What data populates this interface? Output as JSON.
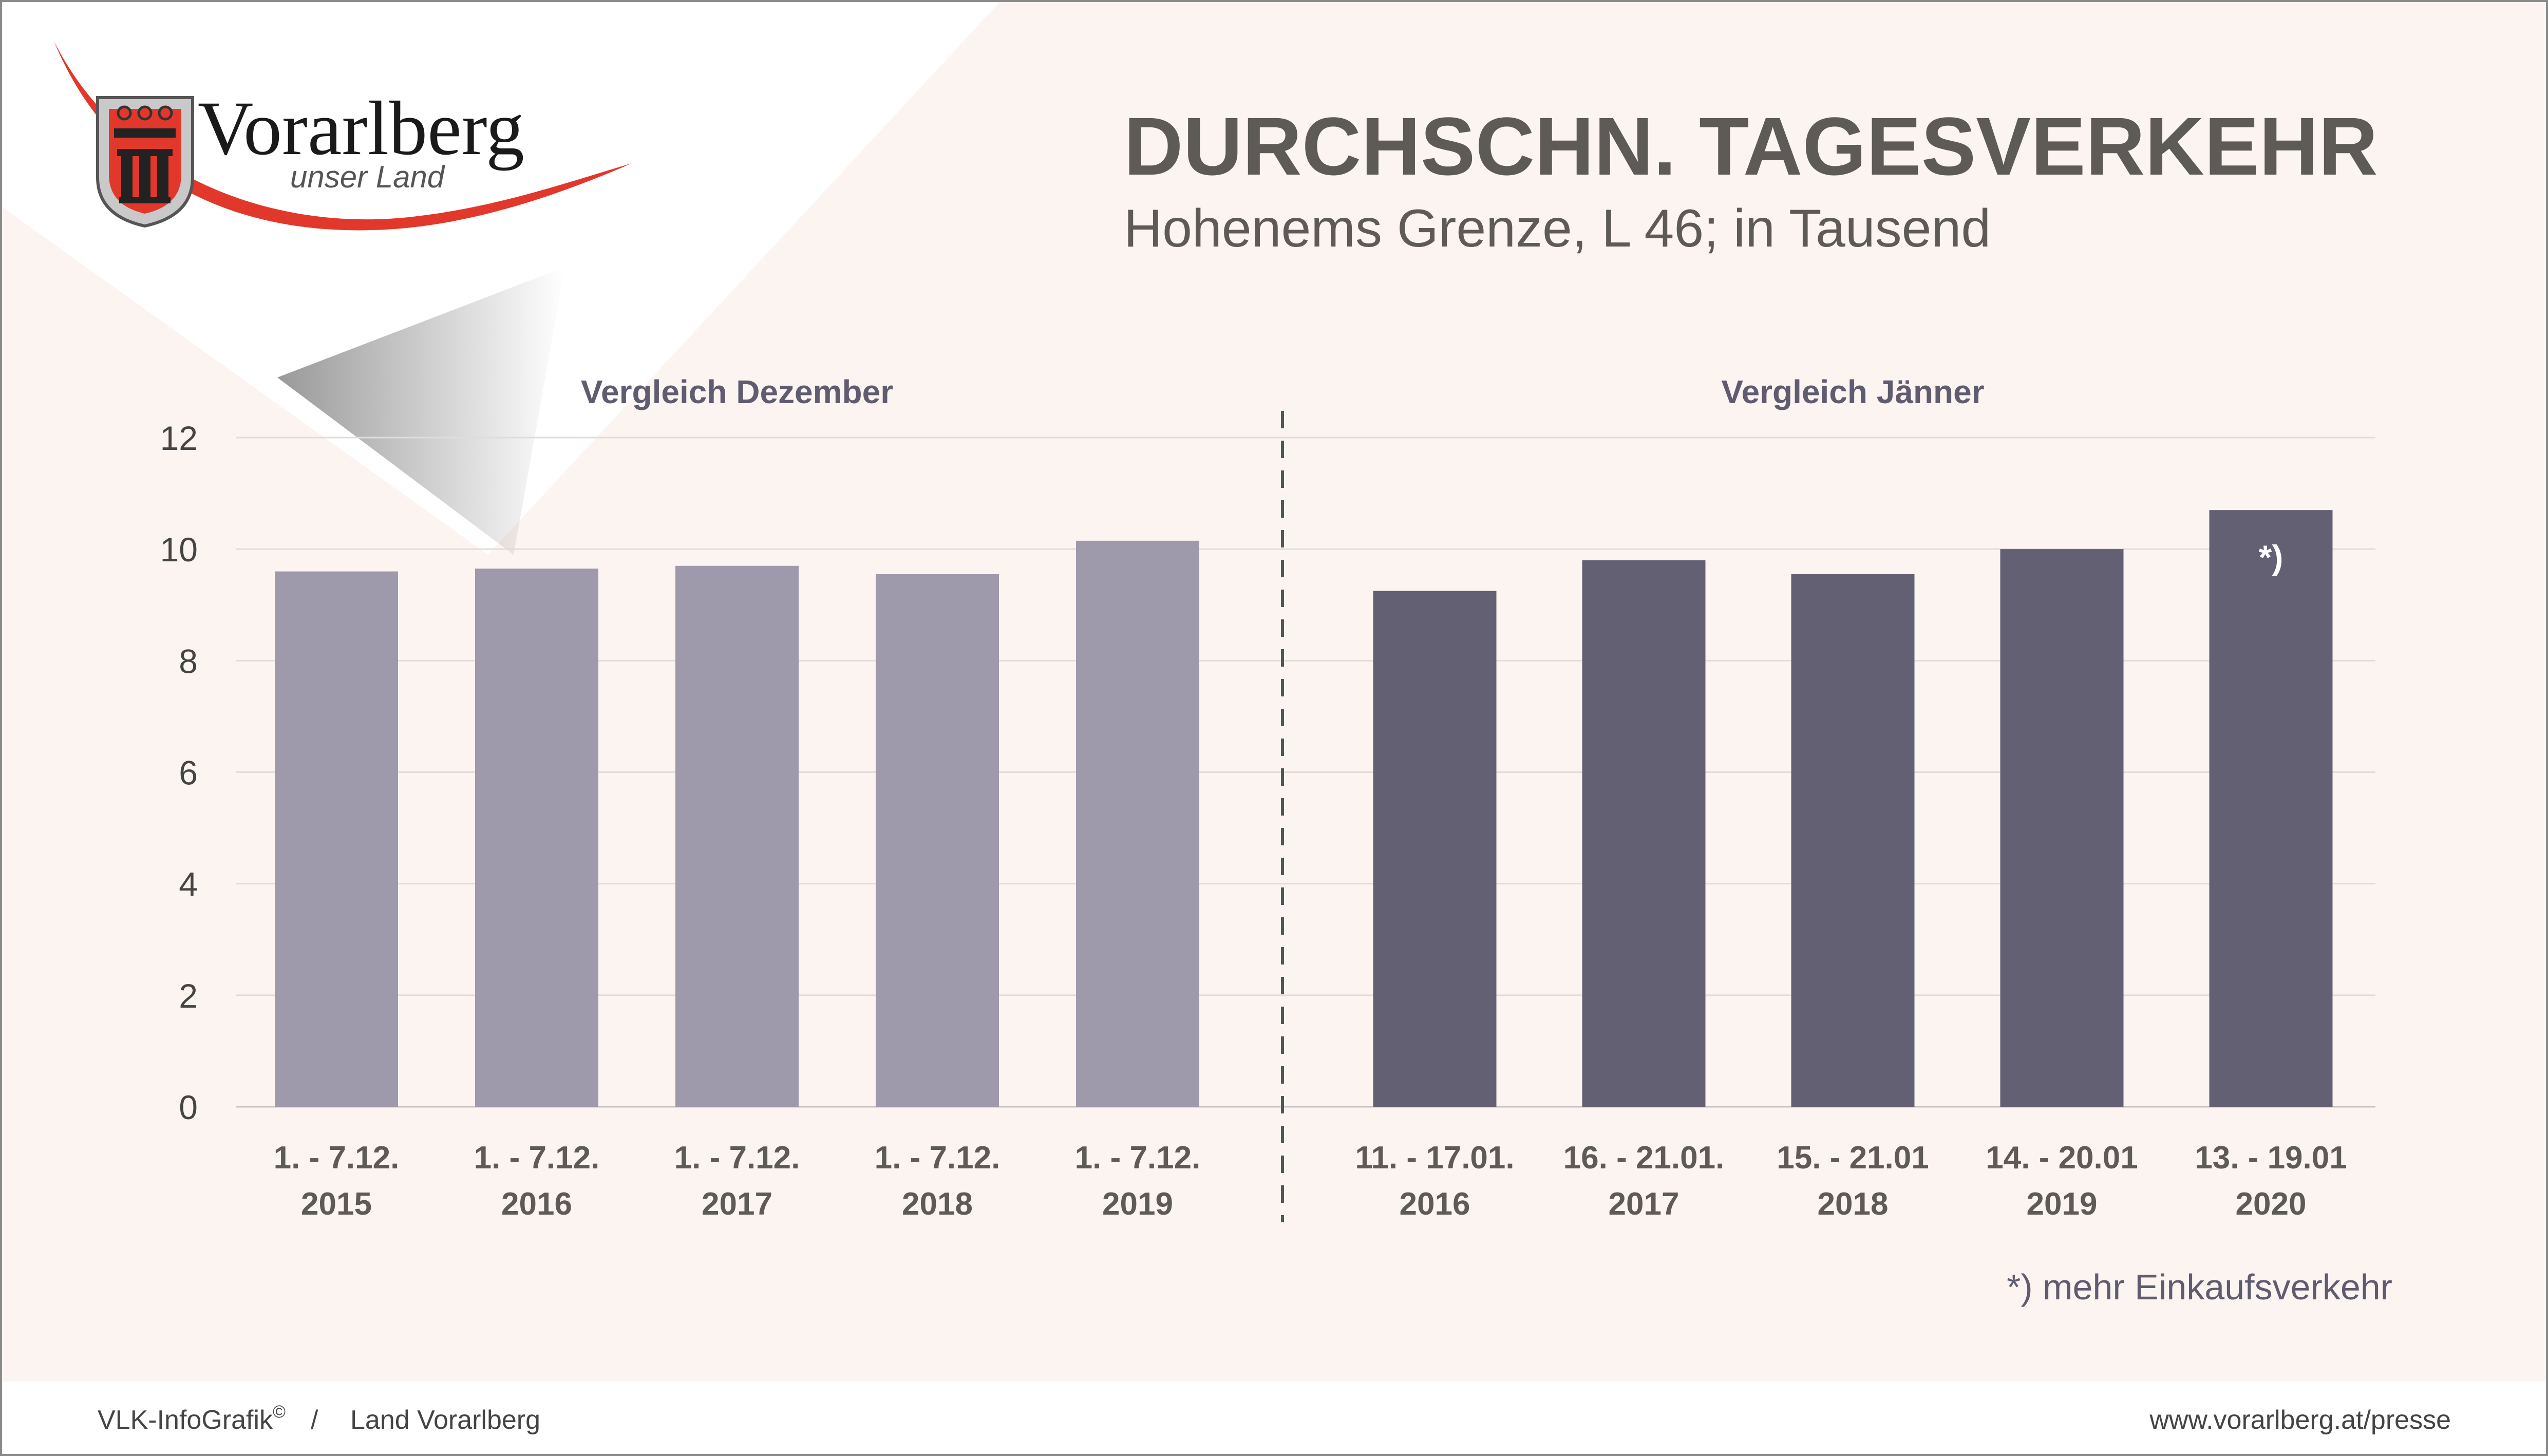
{
  "brand": {
    "name": "Vorarlberg",
    "tagline": "unser Land"
  },
  "header": {
    "title": "DURCHSCHN. TAGESVERKEHR",
    "subtitle": "Hohenems Grenze, L 46; in Tausend"
  },
  "footer": {
    "credit_left": "VLK-InfoGrafik",
    "credit_sup": "©",
    "separator": "/",
    "credit_right": "Land Vorarlberg",
    "url": "www.vorarlberg.at/presse"
  },
  "note": "*) mehr Einkaufsverkehr",
  "colors": {
    "background": "#fcf4f1",
    "dezember_bar": "#9e9aac",
    "jaenner_bar": "#636073",
    "title": "#5d5a57",
    "group_label": "#5f5c70",
    "accent_red": "#e2382c"
  },
  "chart_data": {
    "type": "bar",
    "yticks": [
      "0",
      "2",
      "4",
      "6",
      "8",
      "10",
      "12"
    ],
    "ylim": [
      0,
      12
    ],
    "grid": true,
    "groups": [
      {
        "name": "Vergleich Dezember",
        "categories": [
          [
            "1. - 7.12.",
            "2015"
          ],
          [
            "1. - 7.12.",
            "2016"
          ],
          [
            "1. - 7.12.",
            "2017"
          ],
          [
            "1. - 7.12.",
            "2018"
          ],
          [
            "1. - 7.12.",
            "2019"
          ]
        ],
        "values": [
          9.6,
          9.65,
          9.7,
          9.55,
          10.15
        ]
      },
      {
        "name": "Vergleich Jänner",
        "categories": [
          [
            "11. - 17.01.",
            "2016"
          ],
          [
            "16. - 21.01.",
            "2017"
          ],
          [
            "15. - 21.01",
            "2018"
          ],
          [
            "14. - 20.01",
            "2019"
          ],
          [
            "13. - 19.01",
            "2020"
          ]
        ],
        "values": [
          9.25,
          9.8,
          9.55,
          10.0,
          10.7
        ],
        "annotations": [
          {
            "index": 4,
            "text": "*)"
          }
        ]
      }
    ]
  }
}
